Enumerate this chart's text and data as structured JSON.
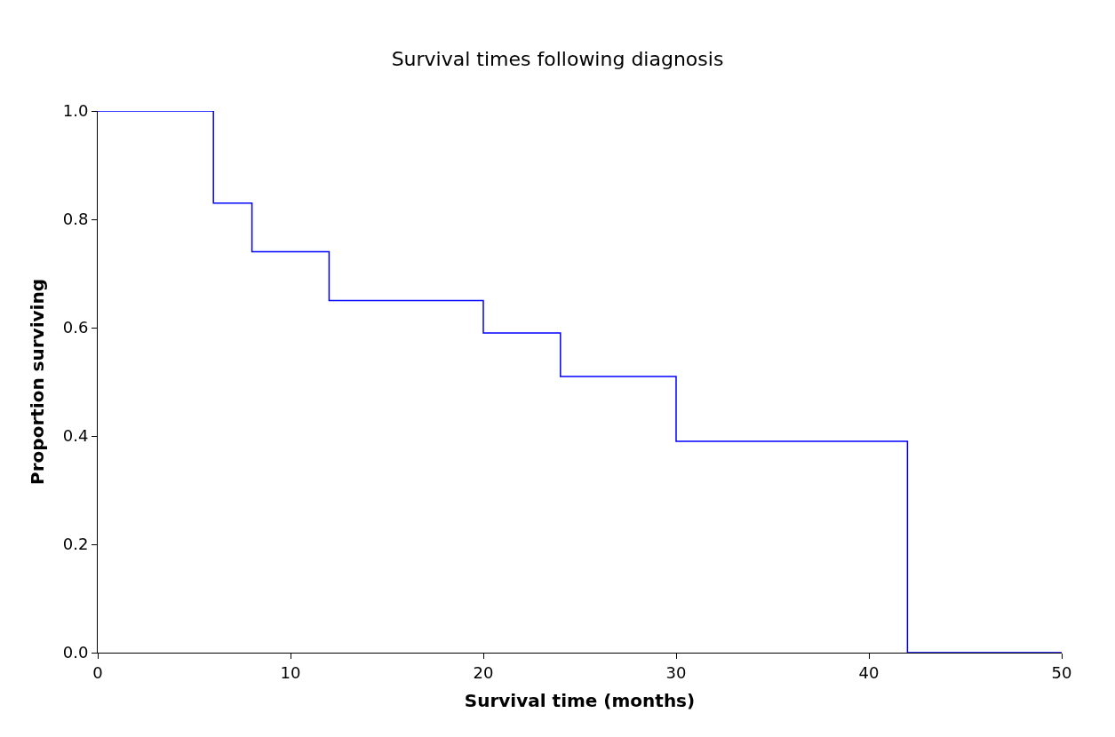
{
  "chart_data": {
    "type": "step",
    "title": "Survival times following diagnosis",
    "xlabel": "Survival time (months)",
    "ylabel": "Proportion surviving",
    "x": [
      0,
      6,
      8,
      12,
      20,
      24,
      30,
      42,
      50
    ],
    "values": [
      1.0,
      0.83,
      0.74,
      0.65,
      0.59,
      0.51,
      0.39,
      0.0,
      0.0
    ],
    "color": "#0000ff",
    "marker": "none",
    "line_style": "solid",
    "xlim": [
      0,
      50
    ],
    "xticks": [
      0,
      10,
      20,
      30,
      40,
      50
    ],
    "ylim": [
      0,
      1
    ],
    "yticks": [
      {
        "value": 0,
        "label": "0.0"
      },
      {
        "value": 0.2,
        "label": "0.2"
      },
      {
        "value": 0.4,
        "label": "0.4"
      },
      {
        "value": 0.6,
        "label": "0.6"
      },
      {
        "value": 0.8,
        "label": "0.8"
      },
      {
        "value": 1,
        "label": "1.0"
      }
    ],
    "legend": false
  }
}
